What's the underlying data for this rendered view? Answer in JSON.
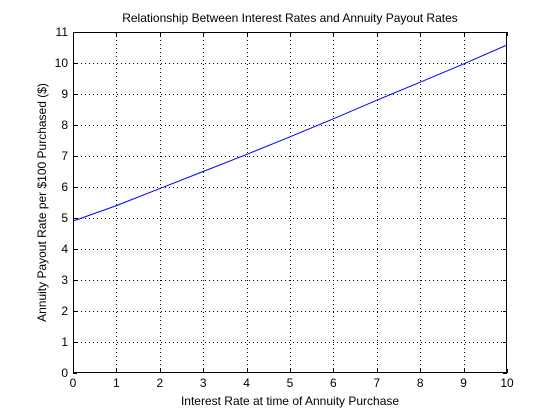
{
  "chart_data": {
    "type": "line",
    "title": "Relationship Between Interest Rates and Annuity Payout Rates",
    "xlabel": "Interest Rate at time of Annuity Purchase",
    "ylabel": "Annuity Payout Rate per $100 Purchased ($)",
    "xlim": [
      0,
      10
    ],
    "ylim": [
      0,
      11
    ],
    "xticks": [
      "0",
      "1",
      "2",
      "3",
      "4",
      "5",
      "6",
      "7",
      "8",
      "9",
      "10"
    ],
    "yticks": [
      "0",
      "1",
      "2",
      "3",
      "4",
      "5",
      "6",
      "7",
      "8",
      "9",
      "10",
      "11"
    ],
    "grid": true,
    "grid_style": "dotted",
    "series": [
      {
        "color": "#0000ff",
        "x": [
          0,
          1,
          2,
          3,
          4,
          5,
          6,
          7,
          8,
          9,
          10
        ],
        "y": [
          4.9,
          5.4,
          5.95,
          6.5,
          7.05,
          7.62,
          8.2,
          8.8,
          9.38,
          9.97,
          10.58
        ]
      }
    ]
  }
}
